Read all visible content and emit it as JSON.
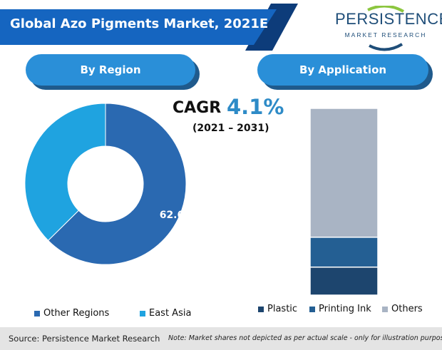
{
  "header": {
    "title": "Global Azo Pigments Market, 2021E",
    "logo_main": "PERSISTENCE",
    "logo_sub": "MARKET RESEARCH"
  },
  "sections": {
    "region_label": "By Region",
    "application_label": "By Application"
  },
  "cagr": {
    "label": "CAGR",
    "value": "4.1%",
    "period": "(2021 – 2031)"
  },
  "colors": {
    "banner": "#1565c0",
    "banner_dark": "#0d3c7a",
    "pill": "#2a8fd8",
    "other_regions": "#2a69b1",
    "east_asia": "#1fa3e0",
    "plastic": "#1d456e",
    "printing_ink": "#245f93",
    "others": "#a9b4c4"
  },
  "chart_data": [
    {
      "type": "pie",
      "donut": true,
      "categories": [
        "Other Regions",
        "East Asia"
      ],
      "values": [
        62.6,
        37.4
      ],
      "data_labels": [
        "62.6%",
        ""
      ],
      "legend": [
        "Other Regions",
        "East Asia"
      ],
      "legend_position": "bottom"
    },
    {
      "type": "bar",
      "stacked": true,
      "categories": [
        ""
      ],
      "series": [
        {
          "name": "Plastic",
          "values": [
            15
          ]
        },
        {
          "name": "Printing Ink",
          "values": [
            16
          ]
        },
        {
          "name": "Others",
          "values": [
            69
          ]
        }
      ],
      "legend_position": "bottom"
    }
  ],
  "footer": {
    "source": "Source: Persistence Market Research",
    "note": "Note: Market shares not depicted as per actual scale - only for illustration purposes"
  }
}
